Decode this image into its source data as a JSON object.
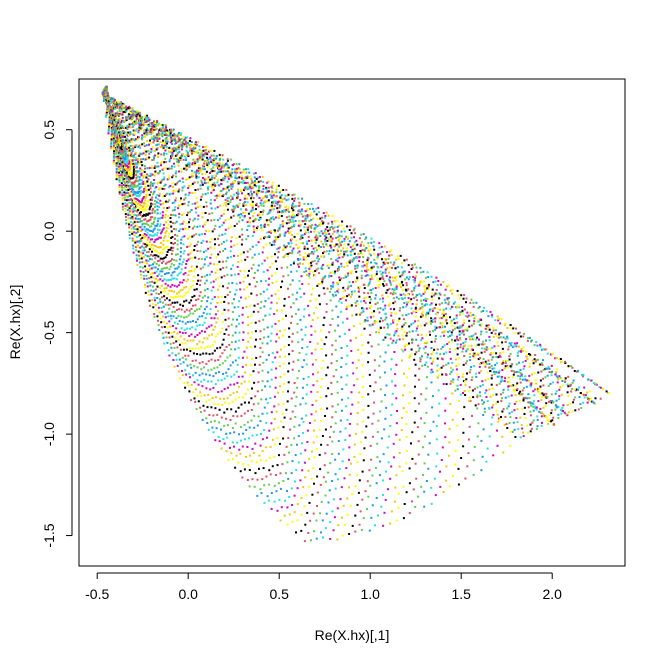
{
  "chart_data": {
    "type": "scatter",
    "title": "",
    "xlabel": "Re(X.hx)[,1]",
    "ylabel": "Re(X.hx)[,2]",
    "xlim": [
      -0.6,
      2.4
    ],
    "ylim": [
      -1.65,
      0.75
    ],
    "grid": false,
    "legend": "none",
    "x_ticks": [
      -0.5,
      0.0,
      0.5,
      1.0,
      1.5,
      2.0
    ],
    "x_tick_labels": [
      "-0.5",
      "0.0",
      "0.5",
      "1.0",
      "1.5",
      "2.0"
    ],
    "y_ticks": [
      -1.5,
      -1.0,
      -0.5,
      0.0,
      0.5
    ],
    "y_tick_labels": [
      "-1.5",
      "-1.0",
      "-0.5",
      "0.0",
      "0.5"
    ],
    "point_colors": [
      "#000000",
      "#df536b",
      "#61d04f",
      "#2297e6",
      "#28e2e5",
      "#cd0bbc",
      "#f5c710",
      "#ffff00"
    ],
    "description_of_series": {
      "origin": [
        -0.47,
        0.68
      ],
      "bottom_point": [
        0.65,
        -1.55
      ],
      "envelope_right_end": [
        1.85,
        -1.03
      ],
      "fan_tips": [
        [
          2.33,
          -0.81
        ],
        [
          2.25,
          -0.86
        ],
        [
          2.1,
          -0.92
        ],
        [
          2.03,
          -0.97
        ]
      ],
      "rays_count": 70,
      "points_per_ray": 60
    }
  }
}
